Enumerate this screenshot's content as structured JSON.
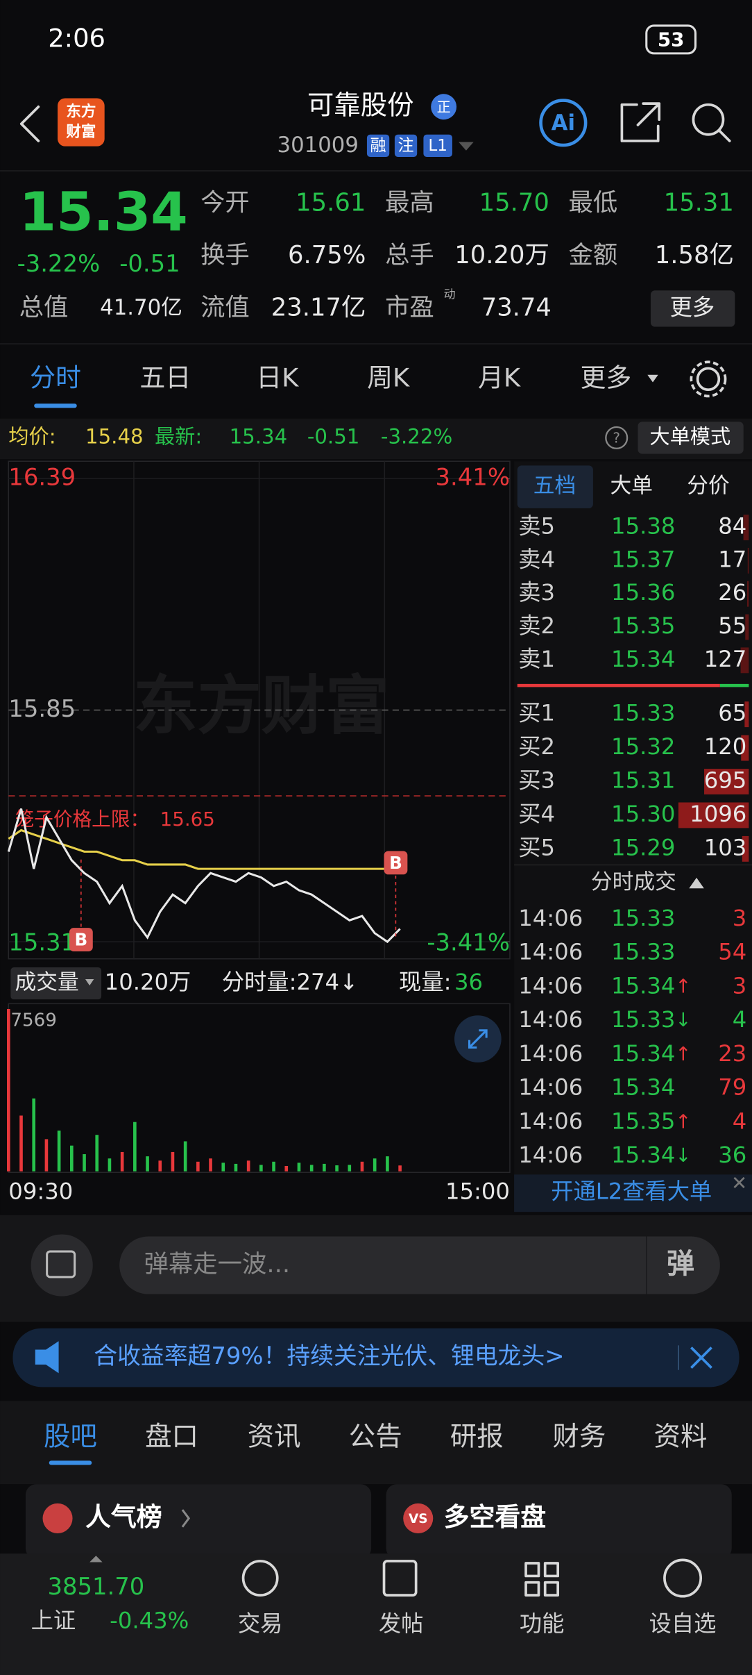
{
  "status_bar": {
    "time": "2:06",
    "battery": "53"
  },
  "header": {
    "logo": [
      "东方",
      "财富"
    ],
    "name": "可靠股份",
    "badge": "正",
    "code": "301009",
    "tags": [
      "融",
      "注",
      "L1"
    ]
  },
  "quote": {
    "price": "15.34",
    "change_pct": "-3.22%",
    "change": "-0.51",
    "fields": [
      {
        "label": "今开",
        "value": "15.61"
      },
      {
        "label": "最高",
        "value": "15.70"
      },
      {
        "label": "最低",
        "value": "15.31"
      },
      {
        "label": "换手",
        "value": "6.75%"
      },
      {
        "label": "总手",
        "value": "10.20万"
      },
      {
        "label": "金额",
        "value": "1.58亿"
      }
    ],
    "total_value": {
      "label": "总值",
      "value": "41.70亿"
    },
    "float_value": {
      "label": "流值",
      "value": "23.17亿"
    },
    "pe": {
      "label": "市盈",
      "sup": "动",
      "value": "73.74"
    },
    "more": "更多"
  },
  "tabs": [
    "分时",
    "五日",
    "日K",
    "周K",
    "月K",
    "更多"
  ],
  "info_bar": {
    "avg_label": "均价:",
    "avg": "15.48",
    "latest_label": "最新:",
    "latest": "15.34",
    "change": "-0.51",
    "change_pct": "-3.22%",
    "mode": "大单模式"
  },
  "chart_data": {
    "type": "line",
    "watermark": "东方财富",
    "ylim": [
      15.31,
      16.39
    ],
    "yticks": [
      16.39,
      15.85,
      15.31
    ],
    "y2lim": [
      -3.41,
      3.41
    ],
    "y2ticks": [
      {
        "value": 3.41,
        "label": "3.41%"
      },
      {
        "value": -3.41,
        "label": "-3.41%"
      }
    ],
    "x_labels": [
      "09:30",
      "15:00"
    ],
    "cage_limit": {
      "label": "笼子价格上限：",
      "value": 15.65
    },
    "markers": [
      "B",
      "B"
    ],
    "series": [
      {
        "color": "#e8e8e8",
        "values": [
          15.52,
          15.62,
          15.48,
          15.6,
          15.55,
          15.5,
          15.47,
          15.45,
          15.4,
          15.44,
          15.36,
          15.32,
          15.38,
          15.42,
          15.4,
          15.44,
          15.47,
          15.46,
          15.45,
          15.47,
          15.46,
          15.44,
          15.45,
          15.43,
          15.42,
          15.4,
          15.38,
          15.36,
          15.37,
          15.33,
          15.31,
          15.34
        ]
      },
      {
        "color": "#e6d04a",
        "values": [
          15.55,
          15.57,
          15.56,
          15.55,
          15.54,
          15.53,
          15.52,
          15.52,
          15.51,
          15.5,
          15.5,
          15.49,
          15.49,
          15.49,
          15.49,
          15.48,
          15.48,
          15.48,
          15.48,
          15.48,
          15.48,
          15.48,
          15.48,
          15.48,
          15.48,
          15.48,
          15.48,
          15.48,
          15.48,
          15.48,
          15.48,
          15.48
        ]
      }
    ],
    "volume": {
      "label": "成交量",
      "total": "10.20万",
      "period": "分时量:274↓",
      "current_label": "现量:",
      "current": "36",
      "ylim": [
        0,
        7569
      ],
      "yticks": [
        7569
      ],
      "values": [
        7569,
        2600,
        3400,
        1500,
        1900,
        1200,
        800,
        1700,
        600,
        900,
        2300,
        700,
        500,
        900,
        1400,
        450,
        600,
        400,
        350,
        500,
        300,
        450,
        250,
        400,
        300,
        350,
        280,
        300,
        450,
        600,
        700,
        274
      ]
    }
  },
  "order_book": {
    "tabs": [
      "五档",
      "大单",
      "分价"
    ],
    "asks": [
      {
        "label": "卖5",
        "price": "15.38",
        "volume": 84
      },
      {
        "label": "卖4",
        "price": "15.37",
        "volume": 17
      },
      {
        "label": "卖3",
        "price": "15.36",
        "volume": 26
      },
      {
        "label": "卖2",
        "price": "15.35",
        "volume": 55
      },
      {
        "label": "卖1",
        "price": "15.34",
        "volume": 127
      }
    ],
    "bids": [
      {
        "label": "买1",
        "price": "15.33",
        "volume": 65
      },
      {
        "label": "买2",
        "price": "15.32",
        "volume": 120
      },
      {
        "label": "买3",
        "price": "15.31",
        "volume": 695
      },
      {
        "label": "买4",
        "price": "15.30",
        "volume": 1096
      },
      {
        "label": "买5",
        "price": "15.29",
        "volume": 103
      }
    ],
    "trades_title": "分时成交",
    "trades": [
      {
        "time": "14:06",
        "price": "15.33",
        "volume": "3",
        "color": "#e8383b"
      },
      {
        "time": "14:06",
        "price": "15.33",
        "volume": "54",
        "color": "#e8383b"
      },
      {
        "time": "14:06",
        "price": "15.34",
        "arrow": "↑",
        "volume": "3",
        "color": "#e8383b"
      },
      {
        "time": "14:06",
        "price": "15.33",
        "arrow": "↓",
        "volume": "4",
        "color": "#27c24c"
      },
      {
        "time": "14:06",
        "price": "15.34",
        "arrow": "↑",
        "volume": "23",
        "color": "#e8383b"
      },
      {
        "time": "14:06",
        "price": "15.34",
        "volume": "79",
        "color": "#e8383b"
      },
      {
        "time": "14:06",
        "price": "15.35",
        "arrow": "↑",
        "volume": "4",
        "color": "#e8383b"
      },
      {
        "time": "14:06",
        "price": "15.34",
        "arrow": "↓",
        "volume": "36",
        "color": "#27c24c"
      }
    ],
    "l2": "开通L2查看大单"
  },
  "comment": {
    "placeholder": "弹幕走一波...",
    "button": "弹"
  },
  "banner": {
    "text": "合收益率超79%！持续关注光伏、锂电龙头>"
  },
  "section_tabs": [
    "股吧",
    "盘口",
    "资讯",
    "公告",
    "研报",
    "财务",
    "资料"
  ],
  "cards": [
    "人气榜",
    "多空看盘"
  ],
  "bottom_nav": {
    "index_value": "3851.70",
    "index_name": "上证",
    "index_change": "-0.43%",
    "items": [
      "交易",
      "发帖",
      "功能",
      "设自选"
    ]
  }
}
